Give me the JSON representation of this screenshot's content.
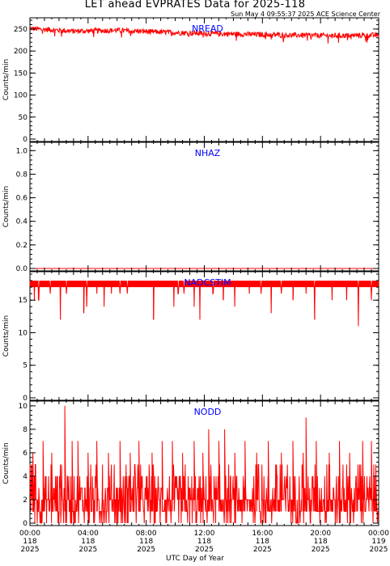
{
  "title": "LET ahead EVPRATES Data for 2025-118",
  "timestamp": "Sun May  4 09:55:37 2025 ACE Science Center",
  "x_axis_title": "UTC Day of Year",
  "colors": {
    "data": "#ff0000",
    "label": "#0000ff",
    "axes": "#000000"
  },
  "chart_data": [
    {
      "type": "line",
      "title": "NREAD",
      "ylabel": "Counts/min",
      "ylim": [
        0,
        270
      ],
      "yticks": [
        0,
        50,
        100,
        150,
        200,
        250
      ],
      "series": [
        {
          "values_description_only": false,
          "segments": [
            [
              0,
              251,
              3,
              245
            ],
            [
              3,
              245,
              6,
              247
            ],
            [
              6,
              247,
              9,
              243
            ],
            [
              9,
              243,
              12,
              240
            ],
            [
              12,
              240,
              15,
              238
            ],
            [
              15,
              238,
              18,
              236
            ],
            [
              18,
              236,
              21,
              235
            ],
            [
              21,
              235,
              24,
              236
            ]
          ],
          "noise": 6
        }
      ]
    },
    {
      "type": "line",
      "title": "NHAZ",
      "ylabel": "Counts/min",
      "ylim": [
        0,
        1.05
      ],
      "yticks": [
        0.0,
        0.2,
        0.4,
        0.6,
        0.8,
        1.0
      ],
      "constant": 0
    },
    {
      "type": "line",
      "title": "NADCSTIM",
      "ylabel": "Counts/min",
      "ylim": [
        0,
        19
      ],
      "yticks": [
        0,
        5,
        10,
        15
      ],
      "baseline": [
        17,
        18
      ],
      "dips": [
        [
          0.3,
          15
        ],
        [
          0.6,
          15
        ],
        [
          1.4,
          16
        ],
        [
          2.1,
          12
        ],
        [
          2.5,
          16
        ],
        [
          3.7,
          13
        ],
        [
          3.9,
          14
        ],
        [
          4.6,
          16
        ],
        [
          5.1,
          14
        ],
        [
          5.6,
          16
        ],
        [
          6.2,
          16
        ],
        [
          6.7,
          16
        ],
        [
          8.5,
          12
        ],
        [
          9.9,
          14
        ],
        [
          10.2,
          16
        ],
        [
          10.6,
          16
        ],
        [
          11.3,
          14
        ],
        [
          11.7,
          12
        ],
        [
          12.6,
          16
        ],
        [
          13.3,
          15
        ],
        [
          14.1,
          14
        ],
        [
          15.1,
          16
        ],
        [
          15.9,
          16
        ],
        [
          16.6,
          13
        ],
        [
          17.3,
          16
        ],
        [
          18.1,
          15
        ],
        [
          19.0,
          16
        ],
        [
          19.6,
          12
        ],
        [
          20.8,
          15
        ],
        [
          21.8,
          15
        ],
        [
          22.6,
          11
        ],
        [
          23.5,
          15
        ]
      ]
    },
    {
      "type": "line",
      "title": "NODD",
      "ylabel": "Counts/min",
      "ylim": [
        0,
        10.2
      ],
      "yticks": [
        0,
        2,
        4,
        6,
        8,
        10
      ],
      "spikes": [
        [
          0.2,
          6
        ],
        [
          0.9,
          7
        ],
        [
          1.5,
          6
        ],
        [
          2.4,
          10
        ],
        [
          2.9,
          7
        ],
        [
          3.3,
          7
        ],
        [
          4.0,
          6
        ],
        [
          4.6,
          7
        ],
        [
          5.4,
          6
        ],
        [
          6.2,
          7
        ],
        [
          6.9,
          6
        ],
        [
          7.5,
          7
        ],
        [
          8.4,
          6
        ],
        [
          9.1,
          7
        ],
        [
          9.8,
          7
        ],
        [
          10.5,
          6
        ],
        [
          11.3,
          7
        ],
        [
          11.9,
          6
        ],
        [
          12.3,
          8
        ],
        [
          13.0,
          7
        ],
        [
          13.4,
          8
        ],
        [
          14.1,
          6
        ],
        [
          14.8,
          7
        ],
        [
          15.6,
          6
        ],
        [
          16.4,
          7
        ],
        [
          17.3,
          6
        ],
        [
          18.1,
          7
        ],
        [
          18.8,
          6
        ],
        [
          19.0,
          9
        ],
        [
          19.7,
          7
        ],
        [
          20.6,
          6
        ],
        [
          21.3,
          7
        ],
        [
          22.0,
          6
        ],
        [
          22.9,
          7
        ],
        [
          23.5,
          7
        ],
        [
          23.8,
          5
        ]
      ]
    }
  ],
  "x_axis": {
    "xlim": [
      0,
      24
    ],
    "major_ticks": [
      {
        "hour": 0,
        "time": "00:00",
        "doy": "118",
        "year": "2025"
      },
      {
        "hour": 4,
        "time": "04:00",
        "doy": "118",
        "year": "2025"
      },
      {
        "hour": 8,
        "time": "08:00",
        "doy": "118",
        "year": "2025"
      },
      {
        "hour": 12,
        "time": "12:00",
        "doy": "118",
        "year": "2025"
      },
      {
        "hour": 16,
        "time": "16:00",
        "doy": "118",
        "year": "2025"
      },
      {
        "hour": 20,
        "time": "20:00",
        "doy": "118",
        "year": "2025"
      },
      {
        "hour": 24,
        "time": "00:00",
        "doy": "119",
        "year": "2025"
      }
    ]
  }
}
